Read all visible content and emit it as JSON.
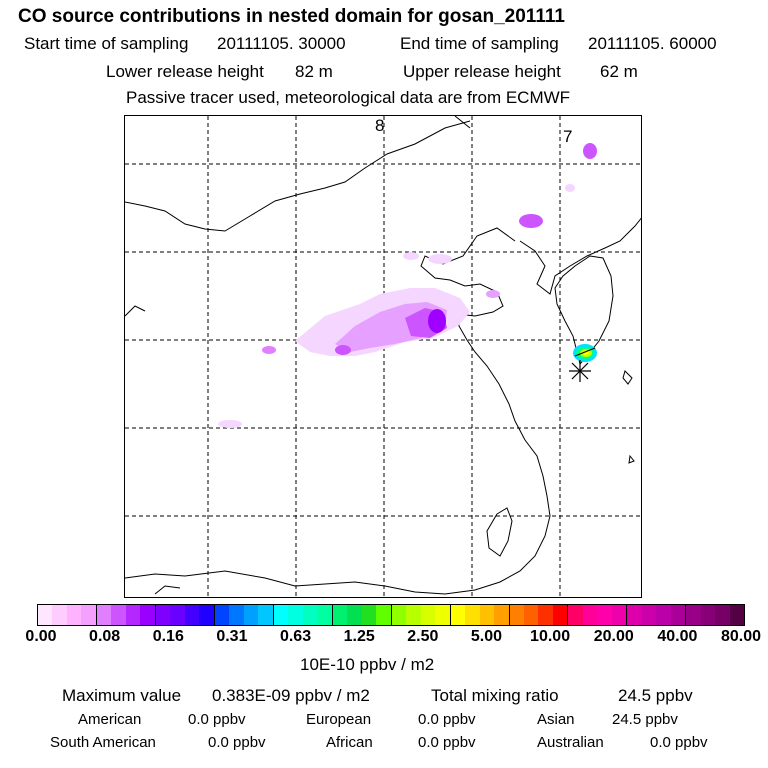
{
  "header": {
    "title": "CO  source contributions in nested domain for gosan_201111",
    "start_label": "Start time of sampling",
    "start_value": "20111105. 30000",
    "end_label": "End time of sampling",
    "end_value": "20111105. 60000",
    "lower_label": "Lower release height",
    "lower_value": "82 m",
    "upper_label": "Upper release height",
    "upper_value": "62 m",
    "tracer_note": "Passive tracer used, meteorological data are from ECMWF"
  },
  "map": {
    "grid_labels": [
      "8",
      "7"
    ],
    "plume_colors": [
      "#f5d6ff",
      "#e6a0ff",
      "#cc55ff",
      "#a000ff"
    ],
    "hotspot_colors": [
      "#00e0ff",
      "#00ff80",
      "#c0ff00",
      "#ffff00"
    ],
    "receptor_symbol": "*"
  },
  "colorbar": {
    "swatches": [
      "#ffe6ff",
      "#ffccff",
      "#ffb3ff",
      "#f5a0ff",
      "#e080ff",
      "#cc55ff",
      "#b428ff",
      "#9900ff",
      "#8000ff",
      "#6a00ff",
      "#4400ff",
      "#2000ff",
      "#0044ff",
      "#0077ff",
      "#00a0ff",
      "#00c8ff",
      "#00ffff",
      "#00ffe0",
      "#00ffc0",
      "#00ffa0",
      "#00f070",
      "#00e050",
      "#20e020",
      "#60ff00",
      "#90ff00",
      "#b8ff00",
      "#d8ff00",
      "#f0ff00",
      "#ffff00",
      "#ffe000",
      "#ffc000",
      "#ffa000",
      "#ff8000",
      "#ff6000",
      "#ff3000",
      "#ff0000",
      "#ff0066",
      "#ff0099",
      "#ff00aa",
      "#ee00aa",
      "#dd00aa",
      "#cc00aa",
      "#bb00aa",
      "#aa0099",
      "#990088",
      "#880077",
      "#770066",
      "#550044"
    ],
    "ticks": [
      "0.00",
      "0.08",
      "0.16",
      "0.31",
      "0.63",
      "1.25",
      "2.50",
      "5.00",
      "10.00",
      "20.00",
      "40.00",
      "80.00"
    ],
    "units": "10E-10 ppbv / m2"
  },
  "stats": {
    "max_label": "Maximum value",
    "max_value": "0.383E-09 ppbv / m2",
    "total_label": "Total mixing ratio",
    "total_value": "24.5 ppbv",
    "american_label": "American",
    "american_value": "0.0 ppbv",
    "european_label": "European",
    "european_value": "0.0 ppbv",
    "asian_label": "Asian",
    "asian_value": "24.5 ppbv",
    "south_american_label": "South American",
    "south_american_value": "0.0 ppbv",
    "african_label": "African",
    "african_value": "0.0 ppbv",
    "australian_label": "Australian",
    "australian_value": "0.0 ppbv"
  }
}
